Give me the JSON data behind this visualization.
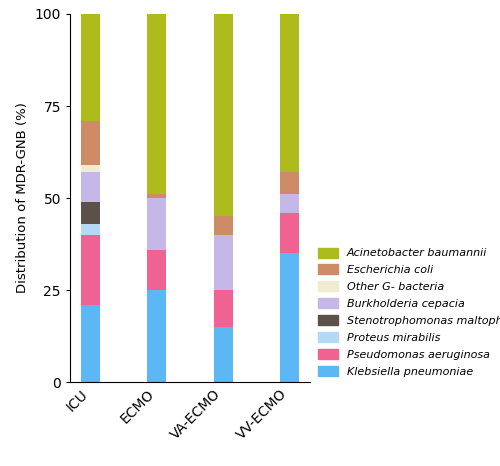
{
  "categories": [
    "ICU",
    "ECMO",
    "VA-ECMO",
    "VV-ECMO"
  ],
  "species": [
    "Klebsiella pneumoniae",
    "Pseudomonas aeruginosa",
    "Proteus mirabilis",
    "Stenotrophomonas maltophilia",
    "Burkholderia cepacia",
    "Other G- bacteria",
    "Escherichia coli",
    "Acinetobacter baumannii"
  ],
  "colors": [
    "#5BB8F5",
    "#F06292",
    "#B3D9F7",
    "#5C504A",
    "#C5B8E8",
    "#F0ECD0",
    "#CD8C65",
    "#ADBC1C"
  ],
  "values": {
    "Klebsiella pneumoniae": [
      21,
      25,
      15,
      35
    ],
    "Pseudomonas aeruginosa": [
      19,
      11,
      10,
      11
    ],
    "Proteus mirabilis": [
      3,
      0,
      0,
      0
    ],
    "Stenotrophomonas maltophilia": [
      6,
      0,
      0,
      0
    ],
    "Burkholderia cepacia": [
      8,
      14,
      15,
      5
    ],
    "Other G- bacteria": [
      2,
      0,
      0,
      0
    ],
    "Escherichia coli": [
      12,
      1,
      5,
      6
    ],
    "Acinetobacter baumannii": [
      29,
      49,
      55,
      43
    ]
  },
  "ylabel": "Distribution of MDR-GNB (%)",
  "ylim": [
    0,
    100
  ],
  "yticks": [
    0,
    25,
    50,
    75,
    100
  ],
  "legend_labels": [
    "Acinetobacter baumannii",
    "Escherichia coli",
    "Other G- bacteria",
    "Burkholderia cepacia",
    "Stenotrophomonas maltophilia",
    "Proteus mirabilis",
    "Pseudomonas aeruginosa",
    "Klebsiella pneumoniae"
  ],
  "legend_colors": [
    "#ADBC1C",
    "#CD8C65",
    "#F0ECD0",
    "#C5B8E8",
    "#5C504A",
    "#B3D9F7",
    "#F06292",
    "#5BB8F5"
  ],
  "bar_width": 0.28,
  "background_color": "#FFFFFF"
}
